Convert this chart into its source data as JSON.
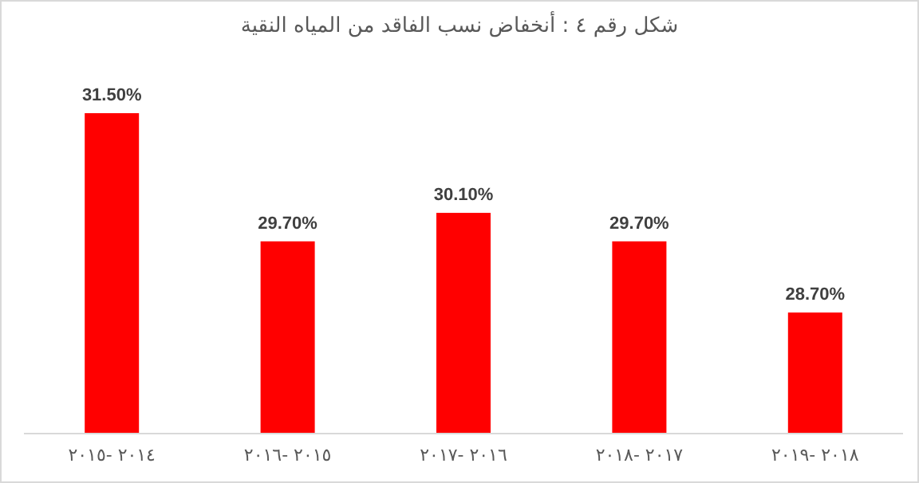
{
  "chart_data": {
    "type": "bar",
    "title": "شكل رقم ٤ : أنخفاض نسب الفاقد من المياه النقية",
    "categories": [
      "٢٠١٤ -٢٠١٥",
      "٢٠١٥ -٢٠١٦",
      "٢٠١٦ -٢٠١٧",
      "٢٠١٧ -٢٠١٨",
      "٢٠١٨ -٢٠١٩"
    ],
    "values": [
      31.5,
      29.7,
      30.1,
      29.7,
      28.7
    ],
    "value_labels": [
      "31.50%",
      "29.70%",
      "30.10%",
      "29.70%",
      "28.70%"
    ],
    "color": "#ff0000",
    "ylim": [
      27,
      31.5
    ],
    "tick_labels": "x"
  }
}
